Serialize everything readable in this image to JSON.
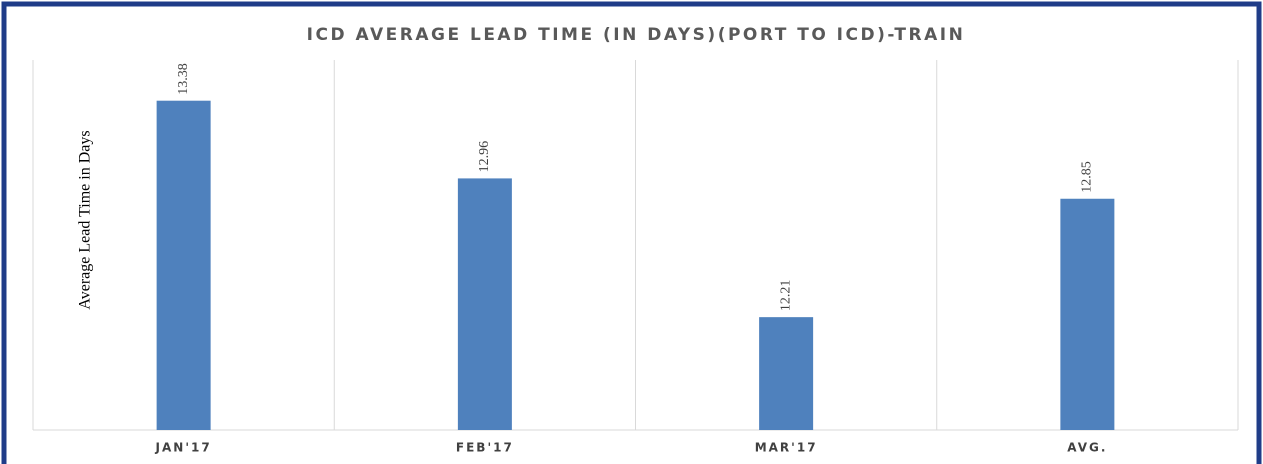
{
  "chart_data": {
    "type": "bar",
    "title": "ICD AVERAGE LEAD TIME (IN DAYS)(PORT TO ICD)-TRAIN",
    "y_label": "Average Lead Time in Days",
    "categories": [
      "JAN'17",
      "FEB'17",
      "MAR'17",
      "AVG."
    ],
    "values": [
      13.38,
      12.96,
      12.21,
      12.85
    ],
    "color": "#4f81bd",
    "ylim": [
      11.6,
      13.6
    ]
  }
}
